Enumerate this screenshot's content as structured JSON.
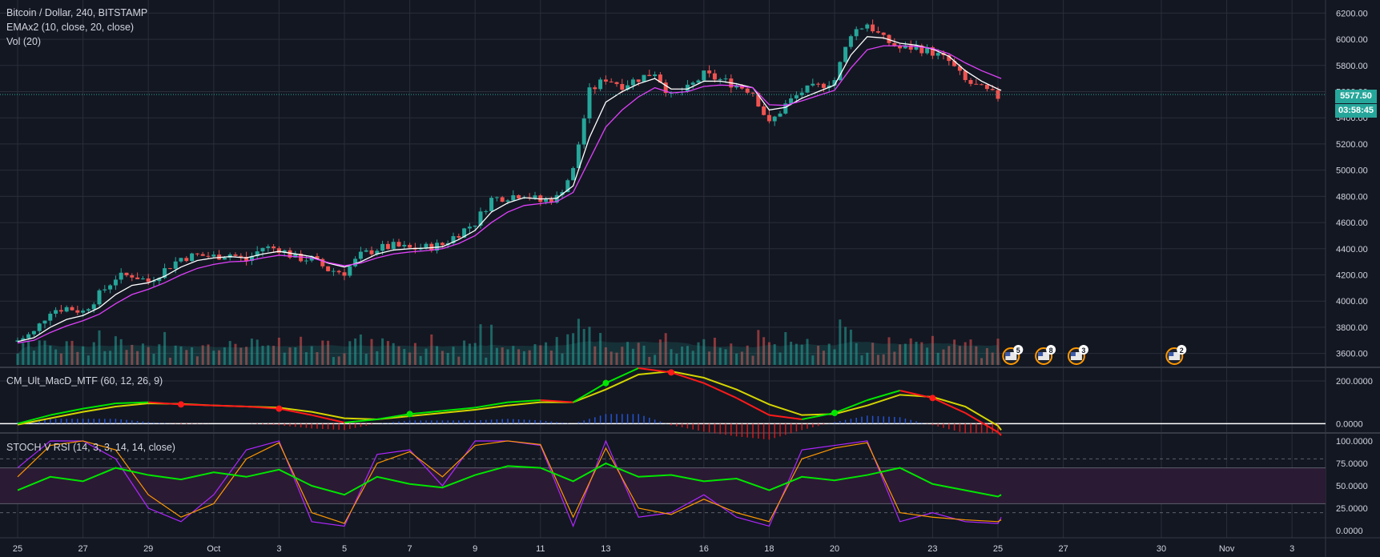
{
  "header": {
    "symbol_line": "Bitcoin / Dollar, 240, BITSTAMP",
    "ema_line": "EMAx2 (10, close, 20, close)",
    "vol_line": "Vol (20)",
    "macd_title": "CM_Ult_MacD_MTF (60, 12, 26, 9)",
    "stoch_title": "STOCH V RSI (14, 3, 3, 14, 14, close)"
  },
  "badges": {
    "last_price": "5577.50",
    "countdown": "03:58:45"
  },
  "events": [
    {
      "label": "5",
      "date_index": 30.4,
      "icon": "us-flag-icon"
    },
    {
      "label": "8",
      "date_index": 31.4,
      "icon": "us-flag-icon"
    },
    {
      "label": "3",
      "date_index": 32.4,
      "icon": "us-flag-icon"
    },
    {
      "label": "2",
      "date_index": 35.4,
      "icon": "us-flag-icon"
    }
  ],
  "colors": {
    "background": "#131722",
    "grid": "#2a2e39",
    "up": "#26a69a",
    "down": "#ef5350",
    "ema_fast": "#ffffff",
    "ema_slow": "#e040fb",
    "macd_up": "#00e600",
    "macd_down": "#ff1a1a",
    "signal": "#d4d400",
    "rsi": "#00e600",
    "stoch_k": "#b026ff",
    "stoch_d": "#ff9800",
    "stoch_band": "#2b1a33"
  },
  "chart_data": [
    {
      "type": "line",
      "name": "price-panel",
      "title": "Bitcoin / Dollar, 240, BITSTAMP",
      "x_unit": "days (index of daily slot)",
      "x_tick_labels": [
        {
          "x": 0,
          "label": "25"
        },
        {
          "x": 2,
          "label": "27"
        },
        {
          "x": 4,
          "label": "29"
        },
        {
          "x": 6,
          "label": "Oct"
        },
        {
          "x": 8,
          "label": "3"
        },
        {
          "x": 10,
          "label": "5"
        },
        {
          "x": 12,
          "label": "7"
        },
        {
          "x": 14,
          "label": "9"
        },
        {
          "x": 16,
          "label": "11"
        },
        {
          "x": 18,
          "label": "13"
        },
        {
          "x": 21,
          "label": "16"
        },
        {
          "x": 23,
          "label": "18"
        },
        {
          "x": 25,
          "label": "20"
        },
        {
          "x": 28,
          "label": "23"
        },
        {
          "x": 30,
          "label": "25"
        },
        {
          "x": 32,
          "label": "27"
        },
        {
          "x": 35,
          "label": "30"
        },
        {
          "x": 37,
          "label": "Nov"
        },
        {
          "x": 39,
          "label": "3"
        }
      ],
      "ylim": [
        3500,
        6300
      ],
      "y_ticks": [
        3600,
        3800,
        4000,
        4200,
        4400,
        4600,
        4800,
        5000,
        5200,
        5400,
        5600,
        5800,
        6000,
        6200
      ],
      "last_price": 5577.5,
      "close_series": {
        "x": [
          0,
          0.5,
          1,
          1.5,
          2,
          2.5,
          3,
          3.5,
          4,
          4.5,
          5,
          5.5,
          6,
          6.5,
          7,
          7.5,
          8,
          8.5,
          9,
          9.5,
          10,
          10.5,
          11,
          11.5,
          12,
          12.5,
          13,
          13.5,
          14,
          14.5,
          15,
          15.5,
          16,
          16.5,
          17,
          17.5,
          18,
          18.5,
          19,
          19.5,
          20,
          20.5,
          21,
          21.5,
          22,
          22.5,
          23,
          23.5,
          24,
          24.5,
          25,
          25.5,
          26,
          26.5,
          27,
          27.5,
          28,
          28.5,
          29,
          29.5,
          30,
          30.1
        ],
        "values": [
          3700,
          3760,
          3930,
          3950,
          3920,
          4050,
          4180,
          4200,
          4150,
          4240,
          4330,
          4350,
          4340,
          4360,
          4310,
          4410,
          4400,
          4330,
          4320,
          4240,
          4220,
          4350,
          4400,
          4420,
          4400,
          4410,
          4430,
          4520,
          4600,
          4780,
          4800,
          4820,
          4760,
          4790,
          5000,
          5600,
          5700,
          5650,
          5700,
          5750,
          5560,
          5620,
          5730,
          5690,
          5650,
          5600,
          5350,
          5500,
          5600,
          5640,
          5690,
          6050,
          6120,
          6000,
          5930,
          5940,
          5900,
          5830,
          5680,
          5620,
          5560,
          5577.5
        ]
      },
      "series": [
        {
          "name": "EMA 10",
          "values": [
            3690,
            3720,
            3800,
            3860,
            3890,
            3950,
            4050,
            4120,
            4140,
            4190,
            4260,
            4310,
            4330,
            4340,
            4330,
            4360,
            4380,
            4360,
            4340,
            4290,
            4260,
            4300,
            4360,
            4390,
            4400,
            4405,
            4415,
            4470,
            4540,
            4680,
            4750,
            4790,
            4780,
            4785,
            4880,
            5250,
            5520,
            5600,
            5660,
            5700,
            5620,
            5620,
            5680,
            5680,
            5660,
            5630,
            5460,
            5480,
            5550,
            5600,
            5650,
            5880,
            6020,
            6010,
            5970,
            5955,
            5925,
            5870,
            5760,
            5680,
            5620,
            5610
          ]
        },
        {
          "name": "EMA 20",
          "values": [
            3680,
            3700,
            3760,
            3810,
            3850,
            3900,
            3980,
            4050,
            4090,
            4140,
            4200,
            4250,
            4280,
            4300,
            4305,
            4330,
            4350,
            4340,
            4330,
            4295,
            4270,
            4290,
            4330,
            4360,
            4375,
            4385,
            4400,
            4440,
            4500,
            4600,
            4680,
            4730,
            4745,
            4760,
            4830,
            5080,
            5330,
            5460,
            5560,
            5630,
            5590,
            5600,
            5640,
            5650,
            5645,
            5630,
            5500,
            5495,
            5530,
            5570,
            5610,
            5780,
            5920,
            5950,
            5950,
            5945,
            5930,
            5890,
            5820,
            5760,
            5710,
            5700
          ]
        }
      ],
      "volume_label": "Vol (20)"
    },
    {
      "type": "line",
      "name": "macd-panel",
      "title": "CM_Ult_MacD_MTF (60, 12, 26, 9)",
      "ylim": [
        -40,
        260
      ],
      "y_ticks": [
        0,
        200
      ],
      "x": [
        0,
        1,
        2,
        3,
        4,
        5,
        6,
        7,
        8,
        9,
        10,
        11,
        12,
        13,
        14,
        15,
        16,
        17,
        18,
        19,
        20,
        21,
        22,
        23,
        24,
        25,
        26,
        27,
        28,
        29,
        30,
        30.1
      ],
      "series": [
        {
          "name": "MACD",
          "values": [
            0,
            40,
            70,
            95,
            100,
            90,
            85,
            80,
            70,
            40,
            5,
            20,
            45,
            60,
            75,
            100,
            110,
            100,
            190,
            260,
            240,
            190,
            120,
            40,
            20,
            50,
            110,
            155,
            120,
            50,
            -40,
            -55
          ]
        },
        {
          "name": "Signal",
          "values": [
            -5,
            25,
            55,
            80,
            95,
            92,
            85,
            80,
            75,
            55,
            25,
            20,
            35,
            50,
            65,
            85,
            100,
            100,
            160,
            230,
            245,
            215,
            160,
            90,
            40,
            45,
            85,
            135,
            125,
            80,
            -10,
            -30
          ]
        }
      ]
    },
    {
      "type": "line",
      "name": "stoch-rsi-panel",
      "title": "STOCH V RSI (14, 3, 3, 14, 14, close)",
      "ylim": [
        -8,
        108
      ],
      "y_ticks": [
        0,
        25,
        50,
        75,
        100
      ],
      "band": [
        30,
        70
      ],
      "x": [
        0,
        1,
        2,
        3,
        4,
        5,
        6,
        7,
        8,
        9,
        10,
        11,
        12,
        13,
        14,
        15,
        16,
        17,
        18,
        19,
        20,
        21,
        22,
        23,
        24,
        25,
        26,
        27,
        28,
        29,
        30,
        30.1
      ],
      "series": [
        {
          "name": "RSI",
          "values": [
            45,
            60,
            55,
            70,
            62,
            57,
            65,
            60,
            68,
            50,
            40,
            60,
            52,
            48,
            62,
            72,
            70,
            55,
            75,
            60,
            62,
            55,
            58,
            45,
            60,
            56,
            62,
            70,
            52,
            45,
            38,
            40
          ]
        },
        {
          "name": "K",
          "values": [
            70,
            100,
            100,
            80,
            25,
            10,
            40,
            90,
            100,
            10,
            5,
            85,
            90,
            50,
            100,
            100,
            95,
            5,
            100,
            15,
            20,
            40,
            15,
            5,
            90,
            95,
            100,
            10,
            20,
            10,
            8,
            15
          ]
        },
        {
          "name": "D",
          "values": [
            60,
            95,
            100,
            90,
            40,
            15,
            30,
            80,
            98,
            20,
            8,
            75,
            88,
            60,
            95,
            100,
            96,
            15,
            92,
            25,
            18,
            35,
            20,
            10,
            80,
            92,
            98,
            20,
            15,
            12,
            10,
            12
          ]
        }
      ]
    }
  ]
}
